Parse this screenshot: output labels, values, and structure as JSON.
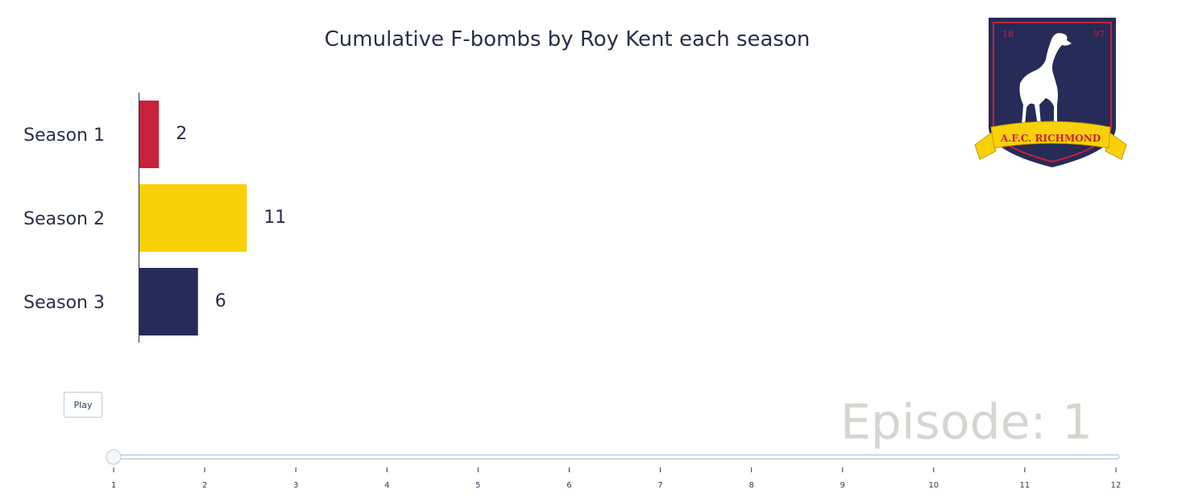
{
  "chart_data": {
    "type": "bar",
    "orientation": "horizontal",
    "title": "Cumulative F-bombs by Roy Kent each season",
    "categories": [
      "Season 1",
      "Season 2",
      "Season 3"
    ],
    "values": [
      2,
      11,
      6
    ],
    "colors": [
      "#c8213b",
      "#f9d108",
      "#262b57"
    ],
    "xlim": [
      0,
      100
    ],
    "xlabel": "",
    "ylabel": "",
    "grid": false,
    "legend": "none"
  },
  "animation": {
    "frame_prefix": "Episode: ",
    "current_frame": "1",
    "play_label": "Play",
    "slider_ticks": [
      "1",
      "2",
      "3",
      "4",
      "5",
      "6",
      "7",
      "8",
      "9",
      "10",
      "11",
      "12"
    ],
    "slider_value": 1,
    "slider_color": "#a9c0e0"
  },
  "logo": {
    "banner_text": "A.F.C. RICHMOND",
    "year_left": "18",
    "year_right": "97",
    "colors": {
      "shield": "#262b57",
      "border": "#c8213b",
      "banner": "#f9d108",
      "dog": "#ffffff"
    }
  }
}
